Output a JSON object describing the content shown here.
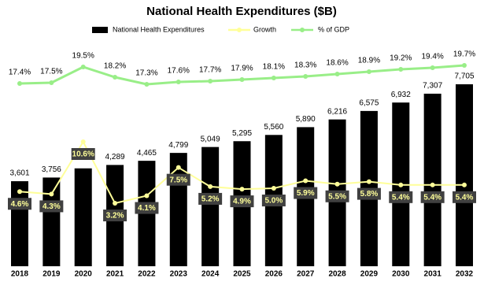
{
  "chart_data": {
    "type": "bar",
    "title": "National Health Expenditures ($B)",
    "categories": [
      "2018",
      "2019",
      "2020",
      "2021",
      "2022",
      "2023",
      "2024",
      "2025",
      "2026",
      "2027",
      "2028",
      "2029",
      "2030",
      "2031",
      "2032"
    ],
    "series": [
      {
        "name": "National Health Expenditures",
        "type": "bar",
        "color": "#000000",
        "values": [
          3601,
          3756,
          4145,
          4289,
          4465,
          4799,
          5049,
          5295,
          5560,
          5890,
          6216,
          6575,
          6932,
          7307,
          7705
        ],
        "value_labels": [
          "3,601",
          "3,756",
          null,
          "4,289",
          "4,465",
          "4,799",
          "5,049",
          "5,295",
          "5,560",
          "5,890",
          "6,216",
          "6,575",
          "6,932",
          "7,307",
          "7,705"
        ]
      },
      {
        "name": "Growth",
        "type": "line",
        "color": "#ffff99",
        "values": [
          4.6,
          4.3,
          10.6,
          3.2,
          4.1,
          7.5,
          5.2,
          4.9,
          5.0,
          5.9,
          5.5,
          5.8,
          5.4,
          5.4,
          5.4
        ],
        "value_labels": [
          "4.6%",
          "4.3%",
          "10.6%",
          "3.2%",
          "4.1%",
          "7.5%",
          "5.2%",
          "4.9%",
          "5.0%",
          "5.9%",
          "5.5%",
          "5.8%",
          "5.4%",
          "5.4%",
          "5.4%"
        ]
      },
      {
        "name": "% of GDP",
        "type": "line",
        "color": "#99ee88",
        "values": [
          17.4,
          17.5,
          19.5,
          18.2,
          17.3,
          17.6,
          17.7,
          17.9,
          18.1,
          18.3,
          18.6,
          18.9,
          19.2,
          19.4,
          19.7
        ],
        "value_labels": [
          "17.4%",
          "17.5%",
          "19.5%",
          "18.2%",
          "17.3%",
          "17.6%",
          "17.7%",
          "17.9%",
          "18.1%",
          "18.3%",
          "18.6%",
          "18.9%",
          "19.2%",
          "19.4%",
          "19.7%"
        ]
      }
    ]
  }
}
